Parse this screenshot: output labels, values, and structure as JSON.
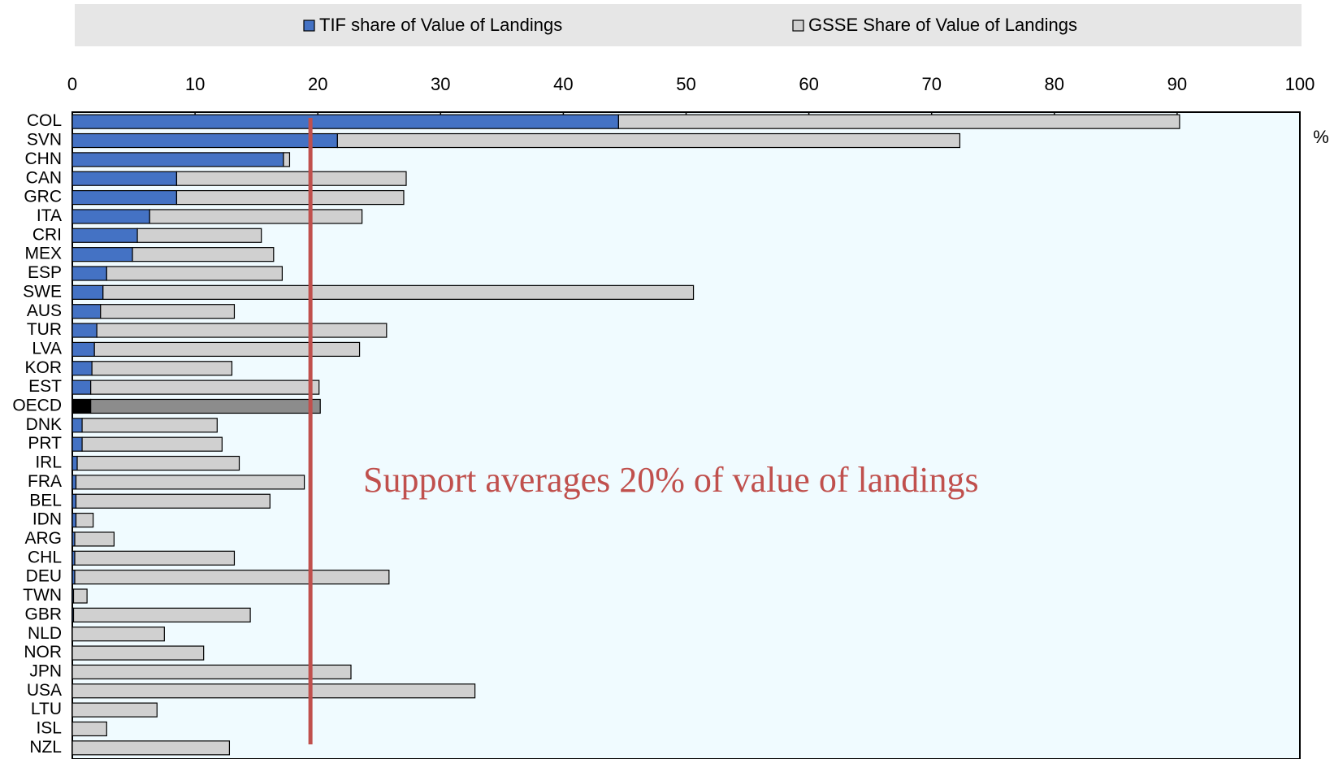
{
  "chart_data": {
    "type": "stacked_barh",
    "categories": [
      "COL",
      "SVN",
      "CHN",
      "CAN",
      "GRC",
      "ITA",
      "CRI",
      "MEX",
      "ESP",
      "SWE",
      "AUS",
      "TUR",
      "LVA",
      "KOR",
      "EST",
      "OECD",
      "DNK",
      "PRT",
      "IRL",
      "FRA",
      "BEL",
      "IDN",
      "ARG",
      "CHL",
      "DEU",
      "TWN",
      "GBR",
      "NLD",
      "NOR",
      "JPN",
      "USA",
      "LTU",
      "ISL",
      "NZL"
    ],
    "series": [
      {
        "name": "TIF share of Value of Landings",
        "color": "#4472c4",
        "highlight_color": "#000000",
        "values": [
          44.5,
          21.6,
          17.2,
          8.5,
          8.5,
          6.3,
          5.3,
          4.9,
          2.8,
          2.5,
          2.3,
          2.0,
          1.8,
          1.6,
          1.5,
          1.5,
          0.8,
          0.8,
          0.4,
          0.3,
          0.3,
          0.3,
          0.2,
          0.2,
          0.2,
          0.1,
          0.1,
          0,
          0,
          0,
          0,
          0,
          0,
          0
        ]
      },
      {
        "name": "GSSE Share of Value of Landings",
        "color": "#d0d0d0",
        "highlight_color": "#8c8c8c",
        "values": [
          45.7,
          50.7,
          0.5,
          18.7,
          18.5,
          17.3,
          10.1,
          11.5,
          14.3,
          48.1,
          10.9,
          23.6,
          21.6,
          11.4,
          18.6,
          18.7,
          11.0,
          11.4,
          13.2,
          18.6,
          15.8,
          1.4,
          3.2,
          13.0,
          25.6,
          1.1,
          14.4,
          7.5,
          10.7,
          22.7,
          32.8,
          6.9,
          2.8,
          12.8
        ]
      }
    ],
    "highlight": "OECD",
    "xlim": [
      0,
      100
    ],
    "xticks": [
      0,
      10,
      20,
      30,
      40,
      50,
      60,
      70,
      80,
      90,
      100
    ],
    "unit_label": "%",
    "reference_line": {
      "value": 19.4,
      "color": "#c0504d"
    },
    "annotation": "Support averages 20% of value of landings"
  }
}
